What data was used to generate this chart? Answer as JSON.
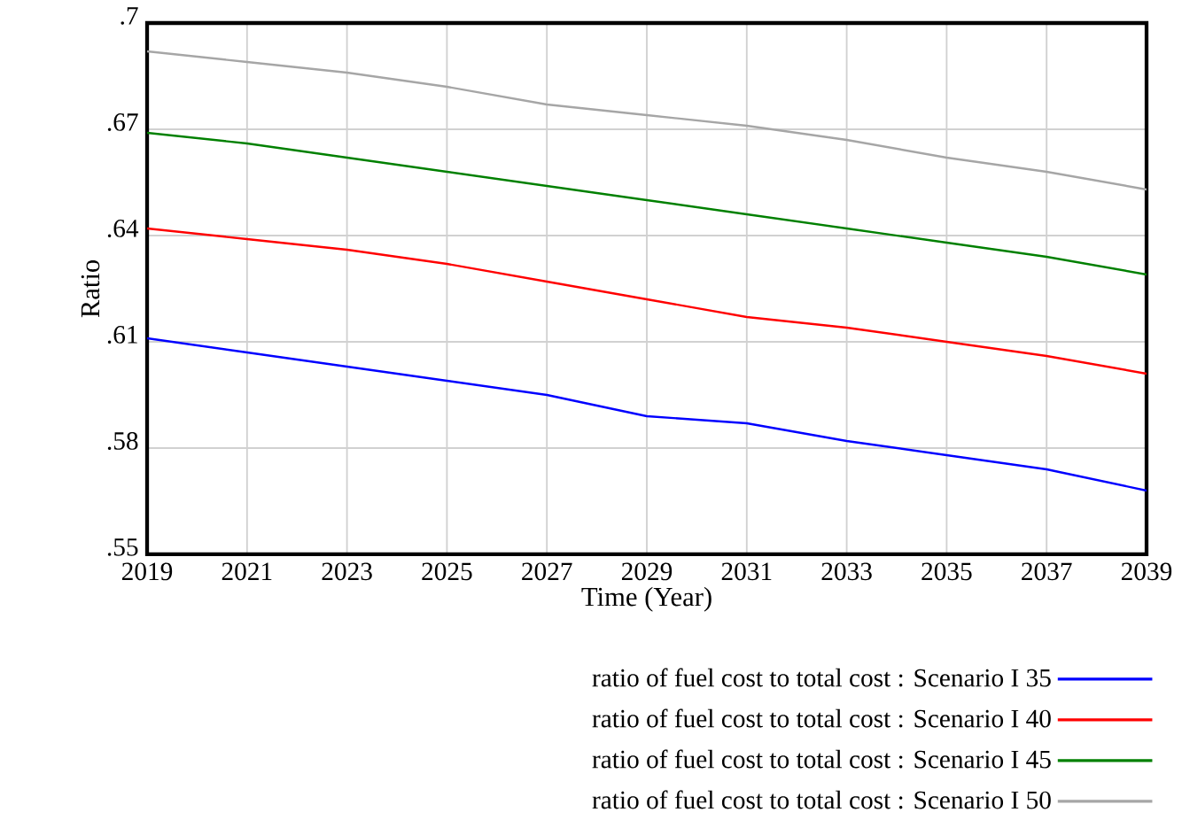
{
  "chart_data": {
    "type": "line",
    "xlabel": "Time (Year)",
    "ylabel": "Ratio",
    "x": [
      2019,
      2021,
      2023,
      2025,
      2027,
      2029,
      2031,
      2033,
      2035,
      2037,
      2039
    ],
    "series": [
      {
        "name": "ratio of fuel cost to total cost : Scenario I 35",
        "color": "#0000ff",
        "values": [
          0.611,
          0.607,
          0.603,
          0.599,
          0.595,
          0.589,
          0.587,
          0.582,
          0.578,
          0.574,
          0.568
        ]
      },
      {
        "name": "ratio of fuel cost to total cost : Scenario I 40",
        "color": "#ff0000",
        "values": [
          0.642,
          0.639,
          0.636,
          0.632,
          0.627,
          0.622,
          0.617,
          0.614,
          0.61,
          0.606,
          0.601
        ]
      },
      {
        "name": "ratio of fuel cost to total cost : Scenario I 45",
        "color": "#008000",
        "values": [
          0.669,
          0.666,
          0.662,
          0.658,
          0.654,
          0.65,
          0.646,
          0.642,
          0.638,
          0.634,
          0.629
        ]
      },
      {
        "name": "ratio of fuel cost to total cost : Scenario I 50",
        "color": "#a6a6a6",
        "values": [
          0.692,
          0.689,
          0.686,
          0.682,
          0.677,
          0.674,
          0.671,
          0.667,
          0.662,
          0.658,
          0.653
        ]
      }
    ],
    "xlim": [
      2019,
      2039
    ],
    "ylim": [
      0.55,
      0.7
    ],
    "xticks": [
      2019,
      2021,
      2023,
      2025,
      2027,
      2029,
      2031,
      2033,
      2035,
      2037,
      2039
    ],
    "yticks": [
      {
        "value": 0.55,
        "label": ".55"
      },
      {
        "value": 0.58,
        "label": ".58"
      },
      {
        "value": 0.61,
        "label": ".61"
      },
      {
        "value": 0.64,
        "label": ".64"
      },
      {
        "value": 0.67,
        "label": ".67"
      },
      {
        "value": 0.7,
        "label": ".7"
      }
    ],
    "grid": true,
    "legend": "bottom",
    "line_style": "solid"
  }
}
